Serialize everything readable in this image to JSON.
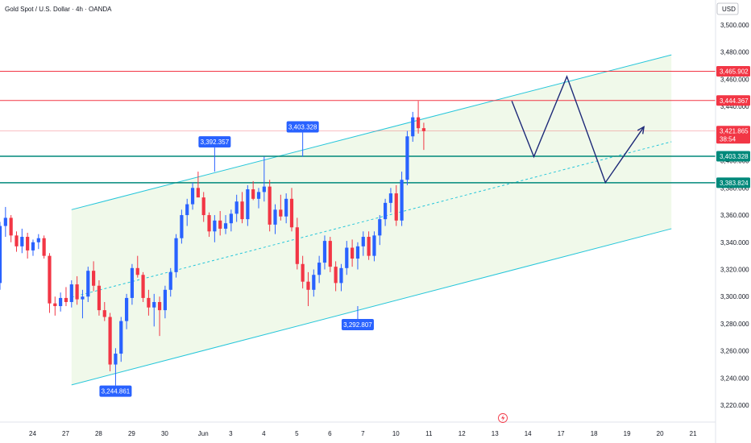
{
  "header": {
    "title": "Gold Spot / U.S. Dollar · 4h · OANDA",
    "currency": "USD"
  },
  "colors": {
    "up": "#2962ff",
    "down": "#f23645",
    "channel": "#26c6da",
    "channel_fill": "#eef8e8",
    "red_level": "#f23645",
    "teal_level": "#00897b",
    "forecast": "#1e2a78",
    "badge": "#2962ff"
  },
  "chart_data": {
    "type": "candlestick",
    "title": "Gold Spot / U.S. Dollar · 4h · OANDA",
    "ylim": [
      3210,
      3516
    ],
    "y_ticks": [
      3220,
      3240,
      3260,
      3280,
      3300,
      3320,
      3340,
      3360,
      3380,
      3400,
      3420,
      3440,
      3460,
      3480,
      3500
    ],
    "y_tick_labels": [
      "3,220.000",
      "3,240.000",
      "3,260.000",
      "3,280.000",
      "3,300.000",
      "3,320.000",
      "3,340.000",
      "3,360.000",
      "3,380.000",
      "3,400.000",
      "3,420.000",
      "3,440.000",
      "3,460.000",
      "3,480.000",
      "3,500.000"
    ],
    "x_ticks": [
      {
        "label": "24",
        "i": 3
      },
      {
        "label": "27",
        "i": 9
      },
      {
        "label": "28",
        "i": 15
      },
      {
        "label": "29",
        "i": 21
      },
      {
        "label": "30",
        "i": 27
      },
      {
        "label": "Jun",
        "i": 34
      },
      {
        "label": "3",
        "i": 39
      },
      {
        "label": "4",
        "i": 45
      },
      {
        "label": "5",
        "i": 51
      },
      {
        "label": "6",
        "i": 57
      },
      {
        "label": "7",
        "i": 63
      },
      {
        "label": "10",
        "i": 69
      },
      {
        "label": "11",
        "i": 75
      },
      {
        "label": "12",
        "i": 81
      },
      {
        "label": "13",
        "i": 87
      },
      {
        "label": "14",
        "i": 93
      },
      {
        "label": "17",
        "i": 99
      },
      {
        "label": "18",
        "i": 105
      },
      {
        "label": "19",
        "i": 111
      },
      {
        "label": "20",
        "i": 117
      },
      {
        "label": "21",
        "i": 123
      }
    ],
    "candles": [
      [
        3310,
        3355,
        3305,
        3352
      ],
      [
        3352,
        3366,
        3344,
        3358
      ],
      [
        3358,
        3360,
        3340,
        3345
      ],
      [
        3345,
        3348,
        3333,
        3337
      ],
      [
        3337,
        3350,
        3332,
        3344
      ],
      [
        3344,
        3347,
        3328,
        3334
      ],
      [
        3334,
        3342,
        3330,
        3340
      ],
      [
        3340,
        3346,
        3335,
        3343
      ],
      [
        3343,
        3345,
        3328,
        3330
      ],
      [
        3330,
        3332,
        3288,
        3295
      ],
      [
        3295,
        3300,
        3286,
        3293
      ],
      [
        3293,
        3303,
        3289,
        3299
      ],
      [
        3299,
        3307,
        3293,
        3296
      ],
      [
        3296,
        3312,
        3292,
        3309
      ],
      [
        3309,
        3315,
        3294,
        3298
      ],
      [
        3298,
        3305,
        3284,
        3300
      ],
      [
        3300,
        3322,
        3296,
        3319
      ],
      [
        3319,
        3326,
        3304,
        3308
      ],
      [
        3308,
        3312,
        3286,
        3290
      ],
      [
        3290,
        3296,
        3282,
        3285
      ],
      [
        3285,
        3288,
        3245,
        3250
      ],
      [
        3250,
        3262,
        3244,
        3258
      ],
      [
        3258,
        3285,
        3252,
        3282
      ],
      [
        3282,
        3302,
        3276,
        3299
      ],
      [
        3299,
        3324,
        3294,
        3321
      ],
      [
        3321,
        3330,
        3314,
        3316
      ],
      [
        3316,
        3318,
        3296,
        3299
      ],
      [
        3299,
        3305,
        3286,
        3292
      ],
      [
        3292,
        3302,
        3278,
        3296
      ],
      [
        3296,
        3300,
        3271,
        3290
      ],
      [
        3290,
        3308,
        3284,
        3305
      ],
      [
        3305,
        3321,
        3300,
        3318
      ],
      [
        3318,
        3346,
        3314,
        3343
      ],
      [
        3343,
        3364,
        3339,
        3360
      ],
      [
        3360,
        3372,
        3352,
        3368
      ],
      [
        3368,
        3384,
        3364,
        3380
      ],
      [
        3380,
        3392,
        3374,
        3373
      ],
      [
        3373,
        3377,
        3355,
        3360
      ],
      [
        3360,
        3362,
        3344,
        3348
      ],
      [
        3348,
        3360,
        3340,
        3356
      ],
      [
        3356,
        3363,
        3345,
        3350
      ],
      [
        3350,
        3360,
        3346,
        3354
      ],
      [
        3354,
        3364,
        3348,
        3361
      ],
      [
        3361,
        3375,
        3355,
        3370
      ],
      [
        3370,
        3377,
        3354,
        3357
      ],
      [
        3357,
        3382,
        3352,
        3379
      ],
      [
        3379,
        3385,
        3371,
        3372
      ],
      [
        3372,
        3380,
        3365,
        3377
      ],
      [
        3377,
        3403,
        3370,
        3381
      ],
      [
        3381,
        3386,
        3348,
        3353
      ],
      [
        3353,
        3368,
        3346,
        3364
      ],
      [
        3364,
        3375,
        3356,
        3359
      ],
      [
        3359,
        3376,
        3354,
        3372
      ],
      [
        3372,
        3380,
        3348,
        3351
      ],
      [
        3351,
        3358,
        3320,
        3324
      ],
      [
        3324,
        3330,
        3306,
        3311
      ],
      [
        3311,
        3318,
        3293,
        3305
      ],
      [
        3305,
        3320,
        3300,
        3316
      ],
      [
        3316,
        3330,
        3310,
        3325
      ],
      [
        3325,
        3345,
        3320,
        3341
      ],
      [
        3341,
        3344,
        3318,
        3322
      ],
      [
        3322,
        3326,
        3304,
        3310
      ],
      [
        3310,
        3324,
        3304,
        3321
      ],
      [
        3321,
        3341,
        3316,
        3336
      ],
      [
        3336,
        3342,
        3322,
        3328
      ],
      [
        3328,
        3340,
        3320,
        3337
      ],
      [
        3337,
        3348,
        3330,
        3344
      ],
      [
        3344,
        3348,
        3327,
        3330
      ],
      [
        3330,
        3348,
        3326,
        3345
      ],
      [
        3345,
        3360,
        3338,
        3357
      ],
      [
        3357,
        3372,
        3352,
        3369
      ],
      [
        3369,
        3380,
        3362,
        3376
      ],
      [
        3376,
        3382,
        3352,
        3356
      ],
      [
        3356,
        3392,
        3352,
        3386
      ],
      [
        3386,
        3422,
        3382,
        3418
      ],
      [
        3418,
        3436,
        3414,
        3432
      ],
      [
        3432,
        3444,
        3420,
        3424
      ],
      [
        3424,
        3428,
        3408,
        3421.865
      ]
    ],
    "channel": {
      "upper": [
        {
          "i": 13,
          "y": 3364
        },
        {
          "i": 122,
          "y": 3478
        }
      ],
      "lower": [
        {
          "i": 13,
          "y": 3235
        },
        {
          "i": 122,
          "y": 3350
        }
      ],
      "middle": [
        {
          "i": 13,
          "y": 3299.5
        },
        {
          "i": 122,
          "y": 3414
        }
      ]
    },
    "levels": [
      {
        "value": 3465.902,
        "label": "3,465.902",
        "kind": "red"
      },
      {
        "value": 3444.367,
        "label": "3,444.367",
        "kind": "red"
      },
      {
        "value": 3421.865,
        "label": "3,421.865",
        "kind": "current",
        "sub": "38:54"
      },
      {
        "value": 3403.328,
        "label": "3,403.328",
        "kind": "teal"
      },
      {
        "value": 3383.824,
        "label": "3,383.824",
        "kind": "teal"
      }
    ],
    "forecast": [
      {
        "i": 93,
        "y": 3444
      },
      {
        "i": 97,
        "y": 3403
      },
      {
        "i": 103,
        "y": 3462
      },
      {
        "i": 110,
        "y": 3384
      },
      {
        "i": 117,
        "y": 3425
      }
    ],
    "annotations": [
      {
        "label": "3,392.357",
        "i": 39,
        "y": 3392,
        "dir": "up"
      },
      {
        "label": "3,403.328",
        "i": 55,
        "y": 3403,
        "dir": "up"
      },
      {
        "label": "3,292.807",
        "i": 65,
        "y": 3293,
        "dir": "down"
      },
      {
        "label": "3,244.861",
        "i": 21,
        "y": 3244,
        "dir": "down"
      }
    ]
  }
}
